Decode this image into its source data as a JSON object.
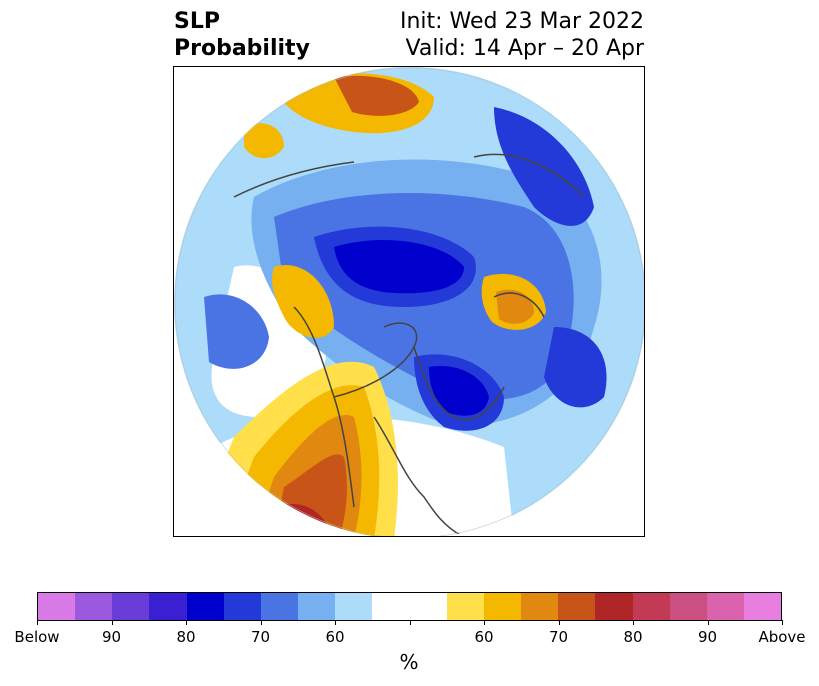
{
  "header": {
    "title_line1": "SLP",
    "title_line2": "Probability",
    "init_text": "Init: Wed 23 Mar 2022",
    "valid_text": "Valid: 14 Apr – 20 Apr"
  },
  "colorbar": {
    "unit_label": "%",
    "colors": [
      "#d97ae6",
      "#9b59e0",
      "#6a3cd8",
      "#3a1fd3",
      "#0000cd",
      "#2339d8",
      "#4a74e4",
      "#77b0f0",
      "#acdcfa",
      "#ffffff",
      "#ffffff",
      "#ffe04a",
      "#f4b800",
      "#e0880f",
      "#c85418",
      "#b02525",
      "#c23a55",
      "#cc4f82",
      "#db62ad",
      "#e87ee0"
    ],
    "tick_labels": [
      "Below",
      "90",
      "80",
      "70",
      "60",
      "",
      "60",
      "70",
      "80",
      "90",
      "Above"
    ]
  },
  "map": {
    "projection": "north-polar-stereographic",
    "anomalies": [
      {
        "region": "central-north-america-canada",
        "category": "below",
        "level": 90
      },
      {
        "region": "greenland-north-atlantic",
        "category": "below",
        "level": 80
      },
      {
        "region": "north-pacific-west",
        "category": "below",
        "level": 70
      },
      {
        "region": "western-united-states",
        "category": "above",
        "level": 80
      },
      {
        "region": "gulf-of-alaska",
        "category": "above",
        "level": 70
      },
      {
        "region": "northern-europe-scandinavia",
        "category": "above",
        "level": 80
      },
      {
        "region": "east-siberian-sea",
        "category": "above",
        "level": 70
      }
    ]
  }
}
